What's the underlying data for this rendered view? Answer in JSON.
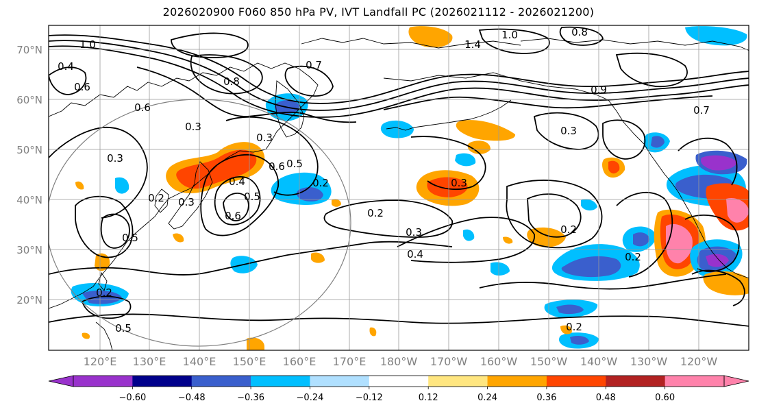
{
  "title": "2026020900 F060 850 hPa PV, IVT Landfall PC (2026021112 - 2026021200)",
  "lat_labels": [
    "70°N",
    "60°N",
    "50°N",
    "40°N",
    "30°N",
    "20°N"
  ],
  "lon_labels": [
    "120°E",
    "130°E",
    "140°E",
    "150°E",
    "160°E",
    "170°E",
    "180°W",
    "170°W",
    "160°W",
    "150°W",
    "140°W",
    "130°W",
    "120°W"
  ],
  "contour_labels": [
    "1.0",
    "1.4",
    "0.8",
    "0.4",
    "0.6",
    "0.7",
    "1.0",
    "0.3",
    "0.3",
    "0.2",
    "0.3",
    "0.4",
    "0.5",
    "0.6",
    "0.5",
    "0.6",
    "0.5",
    "0.3",
    "0.2",
    "0.5",
    "0.2",
    "0.3",
    "0.4",
    "0.3",
    "0.2",
    "0.3",
    "0.8",
    "0.9",
    "0.7",
    "0.2",
    "0.2",
    "0.2",
    "0.6"
  ],
  "colorbar": {
    "colors": [
      "#9932cc",
      "#00008b",
      "#3a5fcd",
      "#00bfff",
      "#b0e0ff",
      "#ffffff",
      "#ffe680",
      "#ffa500",
      "#ff4500",
      "#b22222",
      "#ff82ab"
    ],
    "tick_labels": [
      "−0.60",
      "−0.48",
      "−0.36",
      "−0.24",
      "−0.12",
      "0.12",
      "0.24",
      "0.36",
      "0.48",
      "0.60"
    ]
  },
  "colors": {
    "grid": "#999999",
    "axis_label": "#808080",
    "contour": "#000000",
    "coast": "#000000"
  }
}
